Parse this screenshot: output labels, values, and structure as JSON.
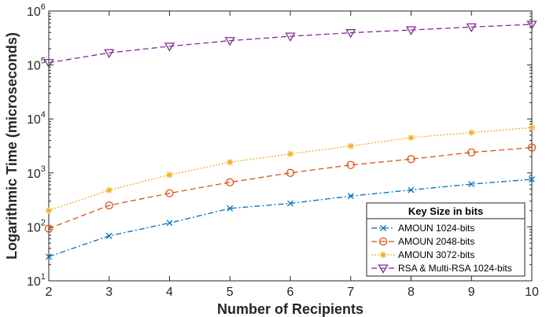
{
  "chart_data": {
    "type": "line",
    "xlabel": "Number of Recipients",
    "ylabel": "Logarithmic Time (microseconds)",
    "x": [
      2,
      3,
      4,
      5,
      6,
      7,
      8,
      9,
      10
    ],
    "xlim": [
      2,
      10
    ],
    "ylim": [
      10,
      1000000
    ],
    "yscale": "log",
    "y_ticks": [
      {
        "base": "10",
        "exp": "1"
      },
      {
        "base": "10",
        "exp": "2"
      },
      {
        "base": "10",
        "exp": "3"
      },
      {
        "base": "10",
        "exp": "4"
      },
      {
        "base": "10",
        "exp": "5"
      },
      {
        "base": "10",
        "exp": "6"
      }
    ],
    "grid": false,
    "legend": {
      "title": "Key Size in bits",
      "placement": "bottom-right"
    },
    "series": [
      {
        "name": "AMOUN 1024-bits",
        "color": "#0072BD",
        "dash": "dashdot",
        "marker": "x",
        "values": [
          28,
          68,
          118,
          220,
          272,
          372,
          482,
          620,
          760
        ]
      },
      {
        "name": "AMOUN 2048-bits",
        "color": "#D95319",
        "dash": "dashed",
        "marker": "circle",
        "values": [
          93,
          250,
          420,
          670,
          1000,
          1400,
          1800,
          2400,
          2950
        ]
      },
      {
        "name": "AMOUN 3072-bits",
        "color": "#EDB120",
        "dash": "dotted",
        "marker": "asterisk",
        "values": [
          200,
          480,
          920,
          1580,
          2250,
          3150,
          4500,
          5600,
          6900
        ]
      },
      {
        "name": "RSA & Multi-RSA 1024-bits",
        "color": "#7E2F8E",
        "dash": "dashed",
        "marker": "triangle-down",
        "values": [
          110000,
          168000,
          222000,
          282000,
          340000,
          395000,
          445000,
          505000,
          565000
        ]
      }
    ]
  }
}
